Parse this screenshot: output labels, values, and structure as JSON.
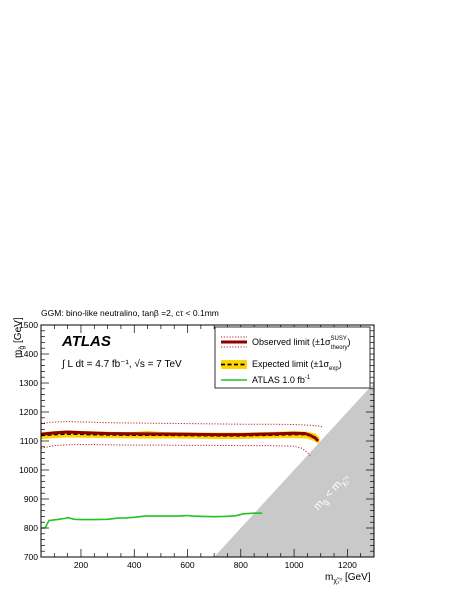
{
  "chart_data": {
    "type": "line",
    "title": "GGM: bino-like neutralino, tanβ =2, cτ < 0.1mm",
    "experiment": "ATLAS",
    "lumi_text": "∫ L dt = 4.7 fb⁻¹, √s = 7 TeV",
    "xlabel": {
      "main": "m",
      "sub": "χ̃₁⁰",
      "unit": " [GeV]"
    },
    "ylabel": {
      "main": "m",
      "sub": "g̃",
      "unit": " [GeV]"
    },
    "xlim": [
      50,
      1300
    ],
    "ylim": [
      700,
      1500
    ],
    "x_ticks": [
      200,
      400,
      600,
      800,
      1000,
      1200
    ],
    "y_ticks": [
      700,
      800,
      900,
      1000,
      1100,
      1200,
      1300,
      1400,
      1500
    ],
    "legend_position": "top-right",
    "excluded_region_label": "m_g̃ < m_χ̃₁⁰",
    "colors": {
      "observed": "#8b0000",
      "theory_band": "#c0202a",
      "expected": "#000000",
      "exp_band": "#ffd400",
      "atlas_1fb": "#22c322",
      "excluded": "#c9c9c9"
    },
    "legend": [
      {
        "id": "observed",
        "label": "Observed limit (±1σ",
        "sup": "SUSY",
        "sub": "theory",
        "close": ")"
      },
      {
        "id": "expected",
        "label": "Expected limit (±1σ",
        "sup": "",
        "sub": "exp",
        "close": ")"
      },
      {
        "id": "atlas_1fb",
        "label": "ATLAS 1.0 fb",
        "sup": "-1",
        "sub": "",
        "close": ""
      }
    ],
    "series": [
      {
        "name": "Observed limit",
        "x": [
          50,
          100,
          150,
          200,
          300,
          400,
          500,
          600,
          700,
          800,
          900,
          1000,
          1040,
          1060,
          1080,
          1090
        ],
        "y": [
          1123,
          1128,
          1131,
          1129,
          1126,
          1125,
          1124,
          1123,
          1122,
          1122,
          1124,
          1127,
          1126,
          1120,
          1110,
          1100
        ]
      },
      {
        "name": "+1σ theory",
        "x": [
          50,
          100,
          150,
          200,
          300,
          400,
          500,
          600,
          700,
          800,
          900,
          1000,
          1050,
          1090,
          1110
        ],
        "y": [
          1161,
          1165,
          1167,
          1166,
          1163,
          1162,
          1161,
          1160,
          1159,
          1158,
          1158,
          1157,
          1155,
          1152,
          1148
        ]
      },
      {
        "name": "-1σ theory",
        "x": [
          50,
          100,
          150,
          200,
          300,
          400,
          500,
          600,
          700,
          800,
          900,
          1000,
          1030,
          1050,
          1060
        ],
        "y": [
          1075,
          1084,
          1087,
          1088,
          1087,
          1086,
          1086,
          1085,
          1085,
          1084,
          1084,
          1082,
          1075,
          1060,
          1050
        ]
      },
      {
        "name": "Expected limit",
        "x": [
          50,
          100,
          150,
          200,
          300,
          400,
          500,
          600,
          700,
          800,
          900,
          1000,
          1040,
          1060,
          1080,
          1090
        ],
        "y": [
          1119,
          1122,
          1124,
          1123,
          1121,
          1120,
          1120,
          1119,
          1118,
          1118,
          1120,
          1122,
          1122,
          1118,
          1108,
          1098
        ]
      },
      {
        "name": "+1σ exp",
        "x": [
          50,
          100,
          150,
          200,
          300,
          400,
          450,
          500,
          600,
          700,
          800,
          900,
          1000,
          1050,
          1080,
          1095
        ],
        "y": [
          1130,
          1134,
          1136,
          1135,
          1132,
          1131,
          1135,
          1131,
          1130,
          1129,
          1129,
          1131,
          1134,
          1132,
          1126,
          1112
        ]
      },
      {
        "name": "-1σ exp",
        "x": [
          50,
          100,
          150,
          200,
          300,
          400,
          450,
          500,
          600,
          700,
          800,
          900,
          1000,
          1050,
          1080,
          1095
        ],
        "y": [
          1107,
          1110,
          1112,
          1111,
          1110,
          1109,
          1108,
          1109,
          1108,
          1107,
          1107,
          1109,
          1110,
          1108,
          1098,
          1090
        ]
      },
      {
        "name": "ATLAS 1.0 fb-1",
        "x": [
          50,
          65,
          80,
          110,
          140,
          150,
          175,
          200,
          250,
          300,
          340,
          370,
          400,
          440,
          480,
          520,
          560,
          580,
          600,
          620,
          660,
          700,
          740,
          780,
          810,
          850,
          880
        ],
        "y": [
          800,
          800,
          826,
          829,
          833,
          836,
          830,
          829,
          829,
          830,
          834,
          835,
          837,
          841,
          841,
          841,
          841,
          842,
          843,
          841,
          840,
          839,
          840,
          842,
          849,
          851,
          851
        ]
      }
    ]
  }
}
